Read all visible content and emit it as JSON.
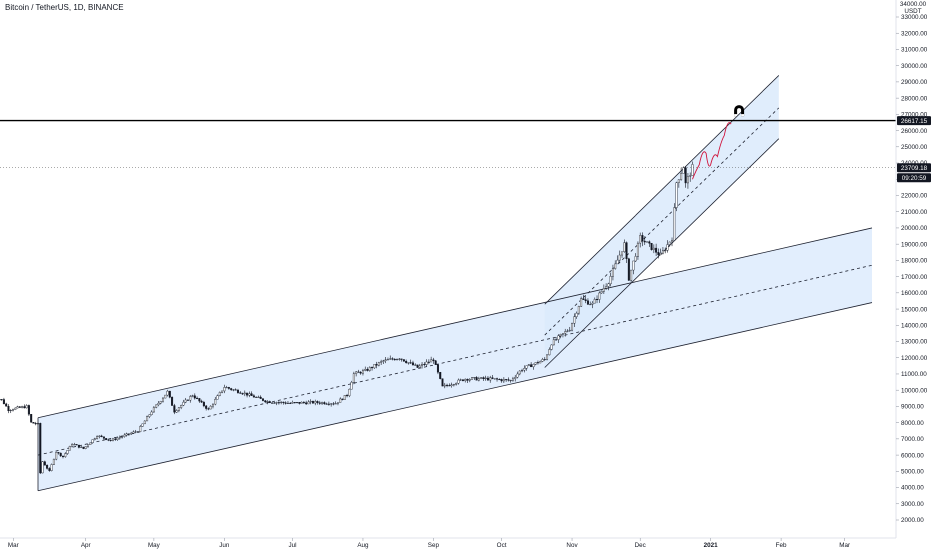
{
  "header": {
    "title": "Bitcoin / TetherUS, 1D, BINANCE"
  },
  "price_axis": {
    "currency_top": "34000.00",
    "currency_unit": "USDT"
  },
  "tags": {
    "resistance_label": "26617.15",
    "last_price_label": "23709.18",
    "countdown_label": "09:20:59"
  },
  "colors": {
    "channel_fill": "#dbeafc",
    "channel_fill_dark": "#c3dcf6",
    "channel_line": "#1e2230",
    "candle": "#131722",
    "resistance": "#000000",
    "projection": "#d0143c",
    "grid_axis": "#e0e3eb"
  },
  "chart_data": {
    "type": "candlestick",
    "title": "Bitcoin / TetherUS, 1D, BINANCE",
    "ylim": [
      1200,
      34600
    ],
    "y_ticks": [
      2000,
      3000,
      4000,
      5000,
      6000,
      7000,
      8000,
      9000,
      10000,
      11000,
      12000,
      13000,
      14000,
      15000,
      16000,
      17000,
      18000,
      19000,
      20000,
      21000,
      22000,
      23000,
      24000,
      25000,
      26000,
      27000,
      28000,
      29000,
      30000,
      31000,
      32000,
      33000
    ],
    "x_ticks": [
      "Mar",
      "Apr",
      "May",
      "Jun",
      "Jul",
      "Aug",
      "Sep",
      "Oct",
      "Nov",
      "Dec",
      "2021",
      "Feb",
      "Mar"
    ],
    "start_date": "2020-02-20",
    "resistance_level": 26617.15,
    "last_price": 23709.18,
    "close_path": [
      [
        "2020-02-20",
        9600
      ],
      [
        "2020-02-24",
        9400
      ],
      [
        "2020-02-27",
        8800
      ],
      [
        "2020-03-02",
        8900
      ],
      [
        "2020-03-06",
        9000
      ],
      [
        "2020-03-08",
        8000
      ],
      [
        "2020-03-11",
        7900
      ],
      [
        "2020-03-12",
        4900
      ],
      [
        "2020-03-13",
        5600
      ],
      [
        "2020-03-16",
        5000
      ],
      [
        "2020-03-19",
        6200
      ],
      [
        "2020-03-22",
        5900
      ],
      [
        "2020-03-26",
        6700
      ],
      [
        "2020-03-31",
        6400
      ],
      [
        "2020-04-06",
        7200
      ],
      [
        "2020-04-12",
        6900
      ],
      [
        "2020-04-18",
        7200
      ],
      [
        "2020-04-24",
        7500
      ],
      [
        "2020-04-30",
        8700
      ],
      [
        "2020-05-07",
        9900
      ],
      [
        "2020-05-10",
        8700
      ],
      [
        "2020-05-18",
        9700
      ],
      [
        "2020-05-25",
        8800
      ],
      [
        "2020-06-01",
        10200
      ],
      [
        "2020-06-10",
        9800
      ],
      [
        "2020-06-20",
        9300
      ],
      [
        "2020-06-30",
        9200
      ],
      [
        "2020-07-10",
        9250
      ],
      [
        "2020-07-20",
        9200
      ],
      [
        "2020-07-25",
        9700
      ],
      [
        "2020-07-28",
        11000
      ],
      [
        "2020-08-02",
        11200
      ],
      [
        "2020-08-10",
        11800
      ],
      [
        "2020-08-17",
        12000
      ],
      [
        "2020-08-25",
        11400
      ],
      [
        "2020-09-01",
        11900
      ],
      [
        "2020-09-05",
        10200
      ],
      [
        "2020-09-15",
        10700
      ],
      [
        "2020-09-25",
        10700
      ],
      [
        "2020-10-05",
        10600
      ],
      [
        "2020-10-10",
        11300
      ],
      [
        "2020-10-20",
        11900
      ],
      [
        "2020-10-23",
        12900
      ],
      [
        "2020-10-31",
        13800
      ],
      [
        "2020-11-05",
        15600
      ],
      [
        "2020-11-10",
        15300
      ],
      [
        "2020-11-17",
        16700
      ],
      [
        "2020-11-24",
        19000
      ],
      [
        "2020-11-26",
        16900
      ],
      [
        "2020-12-01",
        19400
      ],
      [
        "2020-12-10",
        18300
      ],
      [
        "2020-12-15",
        19400
      ],
      [
        "2020-12-17",
        22800
      ],
      [
        "2020-12-20",
        23800
      ],
      [
        "2020-12-21",
        22700
      ],
      [
        "2020-12-23",
        23400
      ],
      [
        "2020-12-24",
        23709.18
      ]
    ],
    "channels": [
      {
        "name": "wide-channel",
        "upper": [
          [
            "2020-03-11",
            8300
          ],
          [
            "2021-03-13",
            20000
          ]
        ],
        "middle": [
          [
            "2020-03-11",
            6000
          ],
          [
            "2021-03-13",
            17700
          ]
        ],
        "lower": [
          [
            "2020-03-11",
            3800
          ],
          [
            "2021-03-13",
            15400
          ]
        ]
      },
      {
        "name": "steep-channel",
        "upper": [
          [
            "2020-10-20",
            15300
          ],
          [
            "2021-01-31",
            29400
          ]
        ],
        "middle": [
          [
            "2020-10-20",
            13400
          ],
          [
            "2021-01-31",
            27400
          ]
        ],
        "lower": [
          [
            "2020-10-20",
            11400
          ],
          [
            "2021-01-31",
            25500
          ]
        ]
      }
    ],
    "projection_path": [
      [
        "2020-12-24",
        23000
      ],
      [
        "2020-12-27",
        23900
      ],
      [
        "2020-12-30",
        24600
      ],
      [
        "2021-01-01",
        23900
      ],
      [
        "2021-01-04",
        24400
      ],
      [
        "2021-01-07",
        25700
      ],
      [
        "2021-01-10",
        26400
      ]
    ]
  }
}
